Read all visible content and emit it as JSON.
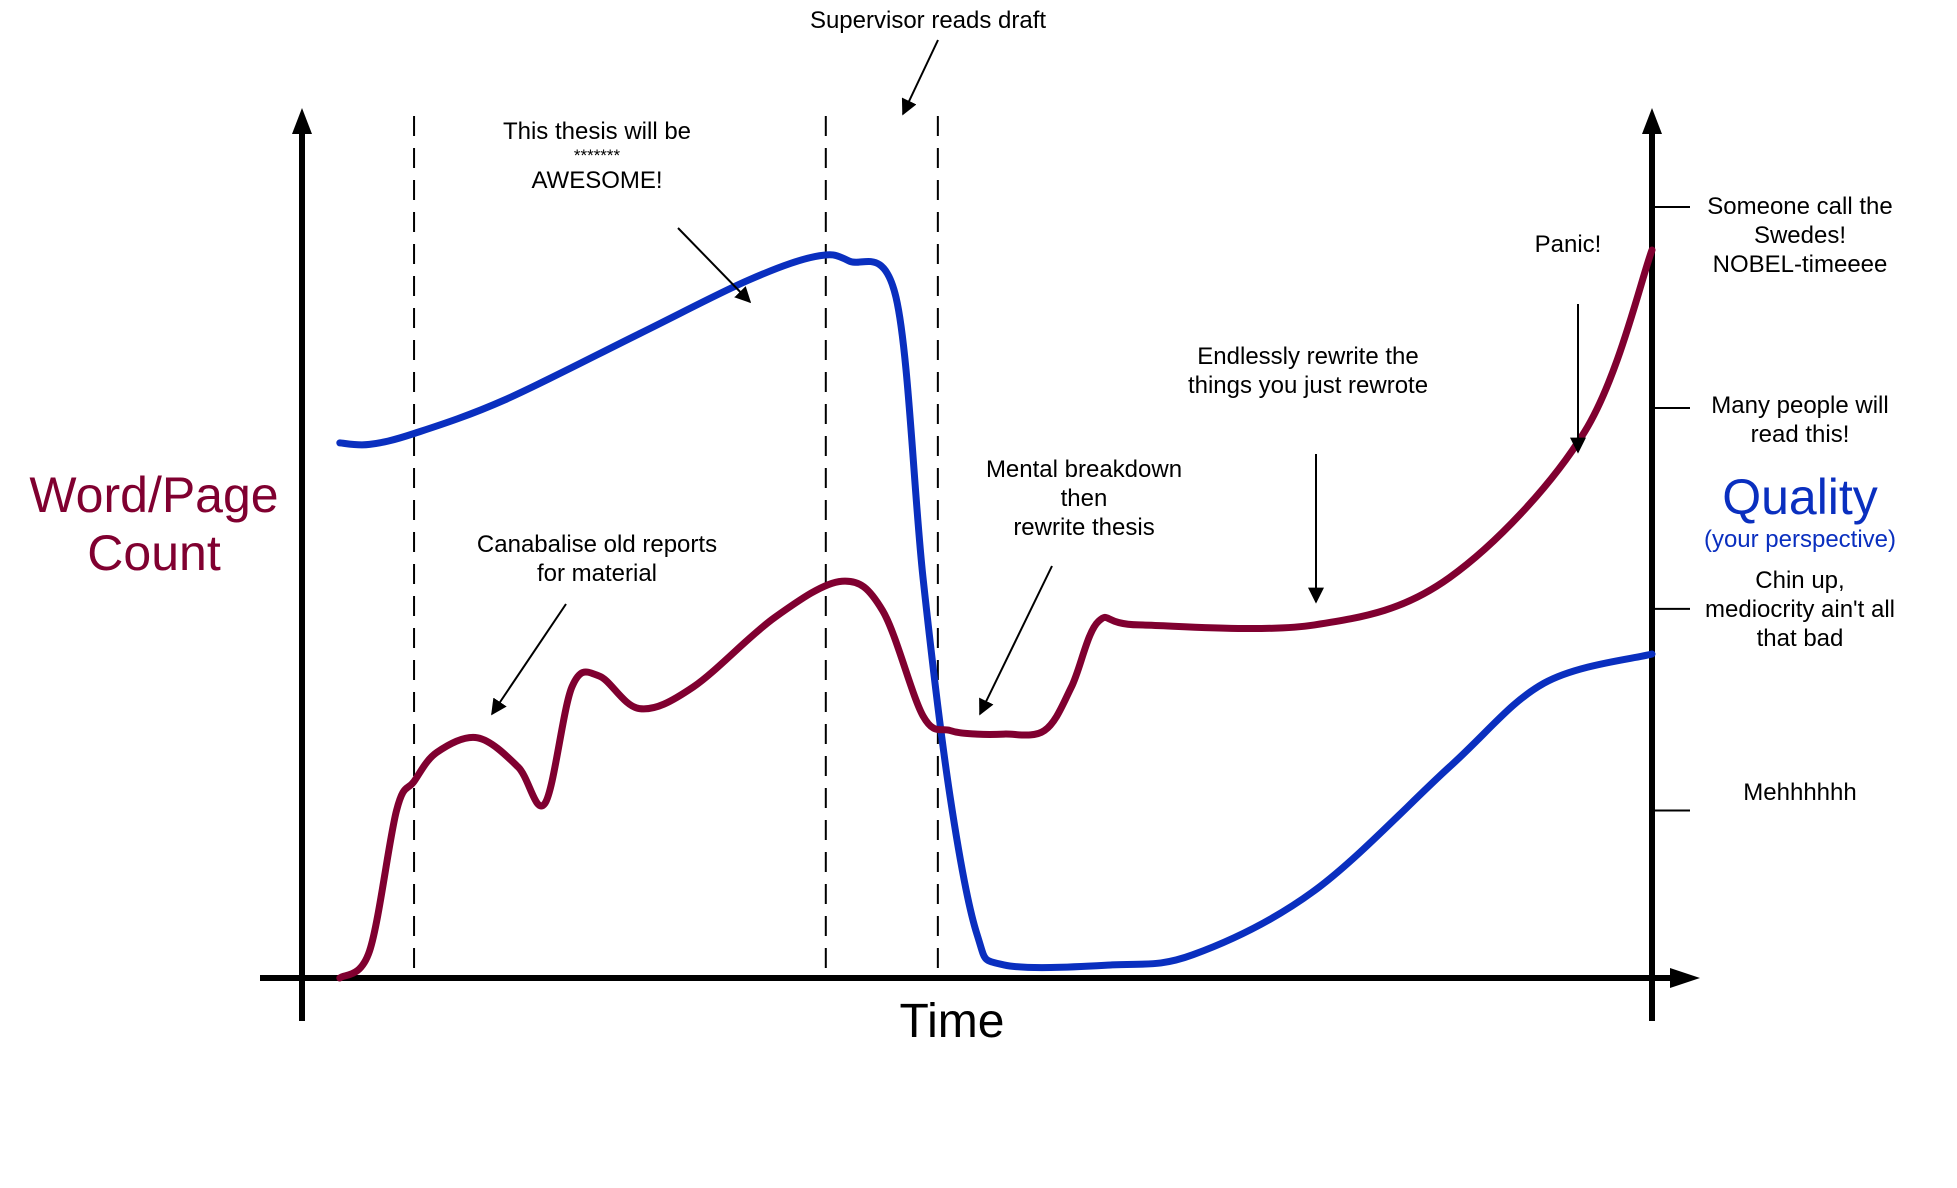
{
  "chart_data": {
    "type": "line",
    "xlabel": "Time",
    "ylabel_left": "Word/Page Count",
    "ylabel_left_lines": [
      "Word/Page",
      "Count"
    ],
    "ylabel_right": "Quality",
    "ylabel_right_subtitle": "(your perspective)",
    "x_ticks": [],
    "y_ticks_left": [],
    "x_range": [
      0,
      100
    ],
    "y_range": [
      0,
      100
    ],
    "quality_levels": [
      {
        "value": 23.0,
        "lines": [
          "Mehhhhhh"
        ]
      },
      {
        "value": 50.7,
        "lines": [
          "Chin up,",
          "mediocrity ain't all",
          "that bad"
        ]
      },
      {
        "value": 78.3,
        "lines": [
          "Many people will",
          "read this!"
        ]
      },
      {
        "value": 105.9,
        "lines": [
          "Someone call the",
          "Swedes!",
          "NOBEL-timeeee"
        ]
      }
    ],
    "phase_dividers_x": [
      8.3,
      38.8,
      47.1
    ],
    "series": [
      {
        "name": "Quality",
        "color": "#0a2fbf",
        "x": [
          2.8,
          5,
          8.3,
          15,
          25,
          33,
          38,
          40.5,
          44,
          46,
          48,
          50,
          52,
          60,
          66,
          75,
          85,
          92,
          100
        ],
        "y": [
          73.5,
          73.3,
          74.8,
          79.4,
          88.5,
          95.8,
          99.1,
          98.5,
          93.5,
          55.0,
          25.0,
          6.0,
          1.8,
          1.8,
          3.2,
          12.0,
          29.0,
          40.5,
          44.5
        ]
      },
      {
        "name": "Word/Page Count",
        "color": "#800030",
        "x": [
          2.8,
          5,
          7,
          8.3,
          10,
          13,
          16,
          18,
          20,
          22,
          25,
          29,
          35,
          40,
          43,
          46,
          48,
          50,
          52,
          55,
          57,
          59,
          62,
          75,
          85,
          95,
          100
        ],
        "y": [
          0.0,
          3.7,
          23.0,
          27.0,
          31.0,
          33.0,
          29.0,
          24.0,
          40.0,
          41.5,
          37.0,
          40.0,
          49.5,
          54.5,
          50.5,
          36.0,
          34.0,
          33.5,
          33.5,
          34.0,
          40.0,
          49.0,
          48.5,
          48.5,
          55.0,
          75.0,
          100.0
        ]
      }
    ],
    "annotations": [
      {
        "lines": [
          "Supervisor reads draft"
        ]
      },
      {
        "lines": [
          "This thesis will be",
          "*******",
          "AWESOME!"
        ]
      },
      {
        "lines": [
          "Canabalise old reports",
          "for material"
        ]
      },
      {
        "lines": [
          "Mental breakdown",
          "then",
          "rewrite thesis"
        ]
      },
      {
        "lines": [
          "Endlessly rewrite the",
          "things you just rewrote"
        ]
      },
      {
        "lines": [
          "Panic!"
        ]
      }
    ],
    "grid": false,
    "legend": "none"
  }
}
